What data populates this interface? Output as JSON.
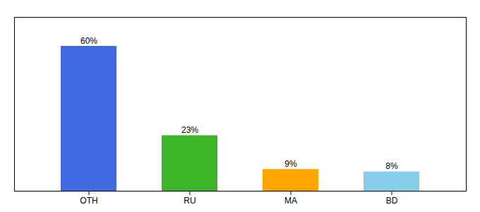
{
  "chart_data": {
    "type": "bar",
    "categories": [
      "OTH",
      "RU",
      "MA",
      "BD"
    ],
    "values": [
      60,
      23,
      9,
      8
    ],
    "value_labels": [
      "60%",
      "23%",
      "9%",
      "8%"
    ],
    "colors": [
      "#4169E1",
      "#3CB528",
      "#FFA500",
      "#87CEEB"
    ],
    "ylim": [
      0,
      72
    ],
    "grid": false,
    "data_labels": true,
    "tick_labels": "x"
  }
}
